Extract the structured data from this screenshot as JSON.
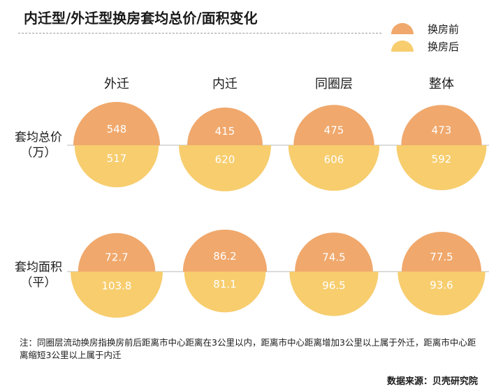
{
  "title": "内迁型/外迁型换房套均总价/面积变化",
  "legend": [
    {
      "label": "换房前",
      "color": "#f0a86c"
    },
    {
      "label": "换房后",
      "color": "#f7cd6e"
    }
  ],
  "columns": [
    "外迁",
    "内迁",
    "同圈层",
    "整体"
  ],
  "rows": [
    {
      "label_line1": "套均总价",
      "label_line2": "（万）"
    },
    {
      "label_line1": "套均面积",
      "label_line2": "（平）"
    }
  ],
  "chart_data": {
    "type": "semicircle-comparison",
    "categories": [
      "外迁",
      "内迁",
      "同圈层",
      "整体"
    ],
    "series": [
      {
        "name": "换房前",
        "metric": "套均总价",
        "values": [
          548,
          415,
          475,
          473
        ]
      },
      {
        "name": "换房后",
        "metric": "套均总价",
        "values": [
          517,
          620,
          606,
          592
        ]
      },
      {
        "name": "换房前",
        "metric": "套均面积",
        "values": [
          72.7,
          86.2,
          74.5,
          77.5
        ]
      },
      {
        "name": "换房后",
        "metric": "套均面积",
        "values": [
          103.8,
          81.1,
          96.5,
          93.6
        ]
      }
    ]
  },
  "value_labels": {
    "price_before": [
      "548",
      "415",
      "475",
      "473"
    ],
    "price_after": [
      "517",
      "620",
      "606",
      "592"
    ],
    "area_before": [
      "72.7",
      "86.2",
      "74.5",
      "77.5"
    ],
    "area_after": [
      "103.8",
      "81.1",
      "96.5",
      "93.6"
    ]
  },
  "note": "注：同圈层流动换房指换房前后距离市中心距离在3公里以内，距离市中心距离增加3公里以上属于外迁，距离市中心距离缩短3公里以上属于内迁",
  "source": "数据来源：贝壳研究院"
}
